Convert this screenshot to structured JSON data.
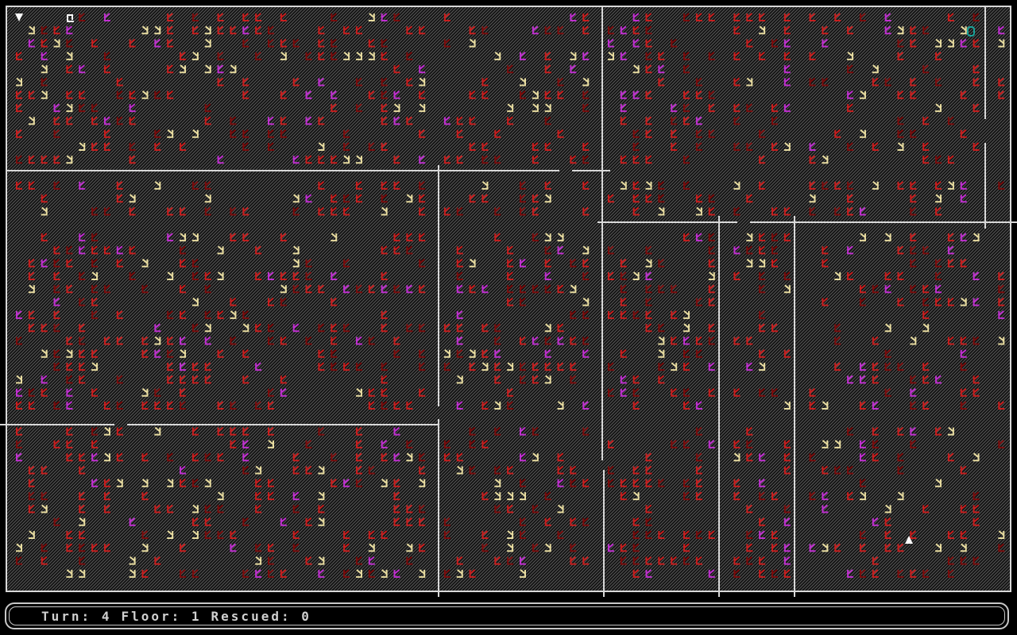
{
  "status": [
    {
      "label": "Turn:",
      "value": 4
    },
    {
      "label": "Floor:",
      "value": 1
    },
    {
      "label": "Rescued:",
      "value": 0
    }
  ]
}
